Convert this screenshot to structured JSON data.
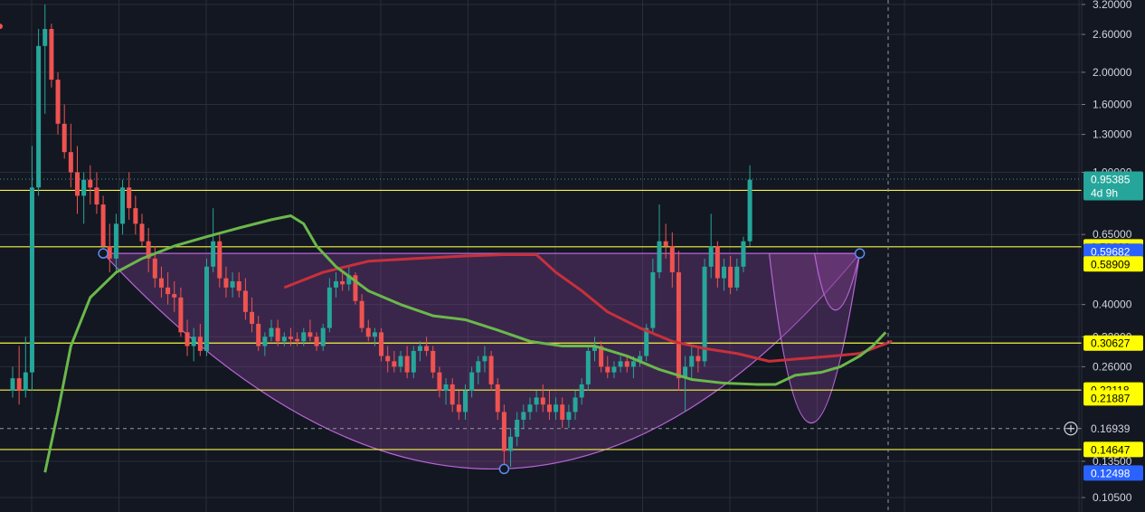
{
  "chart_data": {
    "type": "candlestick",
    "y_scale": "log",
    "ylim": [
      0.095,
      3.3
    ],
    "y_ticks": [
      "3.20000",
      "2.60000",
      "2.00000",
      "1.60000",
      "1.30000",
      "1.00000",
      "0.65000",
      "0.40000",
      "0.32000",
      "0.26000",
      "0.13500",
      "0.10500"
    ],
    "colors": {
      "background": "#131722",
      "grid": "#2a2e39",
      "up": "#26a69a",
      "down": "#ef5350",
      "ma_green": "#6bb84a",
      "ma_red": "#c8303b",
      "pattern_fill": "#7b3f8c",
      "pattern_line": "#b865d6",
      "level_line": "#f5f542"
    },
    "levels": [
      {
        "value": 0.88225,
        "label": "0.88225",
        "bg": "#ffff00",
        "fg": "#000000"
      },
      {
        "value": 0.59682,
        "label": "0.59682",
        "bg": "#ffff00",
        "fg": "#000000"
      },
      {
        "value": 0.30627,
        "label": "0.30627",
        "bg": "#ffff00",
        "fg": "#000000"
      },
      {
        "value": 0.22118,
        "label": "0.22118",
        "bg": "#ffff00",
        "fg": "#000000"
      },
      {
        "value": 0.14647,
        "label": "0.14647",
        "bg": "#ffff00",
        "fg": "#000000"
      }
    ],
    "extra_labels": [
      {
        "value": 0.95385,
        "label": "0.95385",
        "sub": "4d 9h",
        "bg": "#26a69a",
        "fg": "#ffffff"
      },
      {
        "value": 0.5785,
        "label": "0.59682",
        "bg": "#2962ff",
        "fg": "#ffffff"
      },
      {
        "value": 0.53,
        "label": "0.58909",
        "bg": "#ffff00",
        "fg": "#000000"
      },
      {
        "value": 0.2095,
        "label": "0.21887",
        "bg": "#ffff00",
        "fg": "#000000"
      },
      {
        "value": 0.16939,
        "label": "0.16939",
        "bg": "#131722",
        "fg": "#d1d4dc"
      },
      {
        "value": 0.1245,
        "label": "0.12498",
        "bg": "#2962ff",
        "fg": "#ffffff"
      }
    ],
    "crosshair": {
      "price": 0.16939,
      "x_index": 113
    },
    "cup": {
      "left": [
        0.57,
        14
      ],
      "bottom": [
        0.128,
        76
      ],
      "right": [
        0.57,
        131
      ]
    },
    "handle": {
      "left": [
        0.57,
        117
      ],
      "bottom": [
        0.176,
        123
      ],
      "right": [
        0.57,
        131
      ]
    },
    "handle2": {
      "left": [
        0.57,
        124
      ],
      "bottom": [
        0.385,
        127
      ],
      "right": [
        0.57,
        131
      ]
    },
    "ma_green": [
      [
        5,
        0.125
      ],
      [
        7,
        0.19
      ],
      [
        9,
        0.3
      ],
      [
        12,
        0.42
      ],
      [
        16,
        0.5
      ],
      [
        20,
        0.55
      ],
      [
        25,
        0.6
      ],
      [
        30,
        0.64
      ],
      [
        35,
        0.68
      ],
      [
        40,
        0.72
      ],
      [
        43,
        0.74
      ],
      [
        45,
        0.7
      ],
      [
        47,
        0.6
      ],
      [
        50,
        0.52
      ],
      [
        55,
        0.44
      ],
      [
        60,
        0.4
      ],
      [
        65,
        0.37
      ],
      [
        70,
        0.36
      ],
      [
        75,
        0.335
      ],
      [
        80,
        0.31
      ],
      [
        85,
        0.3
      ],
      [
        90,
        0.3
      ],
      [
        95,
        0.28
      ],
      [
        100,
        0.255
      ],
      [
        105,
        0.238
      ],
      [
        110,
        0.232
      ],
      [
        115,
        0.23
      ],
      [
        118,
        0.23
      ],
      [
        121,
        0.245
      ],
      [
        125,
        0.25
      ],
      [
        128,
        0.26
      ],
      [
        131,
        0.28
      ],
      [
        133,
        0.3
      ],
      [
        135,
        0.33
      ]
    ],
    "ma_red": [
      [
        42,
        0.45
      ],
      [
        48,
        0.5
      ],
      [
        55,
        0.54
      ],
      [
        62,
        0.55
      ],
      [
        70,
        0.56
      ],
      [
        76,
        0.565
      ],
      [
        81,
        0.565
      ],
      [
        84,
        0.5
      ],
      [
        88,
        0.44
      ],
      [
        92,
        0.38
      ],
      [
        97,
        0.34
      ],
      [
        102,
        0.31
      ],
      [
        107,
        0.295
      ],
      [
        112,
        0.285
      ],
      [
        117,
        0.27
      ],
      [
        122,
        0.275
      ],
      [
        127,
        0.28
      ],
      [
        131,
        0.285
      ],
      [
        134,
        0.3
      ],
      [
        136,
        0.31
      ]
    ],
    "candles": [
      [
        0.22,
        0.26,
        0.21,
        0.24
      ],
      [
        0.24,
        0.3,
        0.2,
        0.22
      ],
      [
        0.22,
        0.32,
        0.21,
        0.25
      ],
      [
        0.25,
        1.2,
        0.22,
        0.9
      ],
      [
        0.9,
        2.7,
        0.85,
        2.4
      ],
      [
        2.4,
        3.2,
        1.5,
        2.7
      ],
      [
        2.7,
        2.8,
        1.8,
        1.9
      ],
      [
        1.9,
        2.0,
        1.3,
        1.4
      ],
      [
        1.4,
        1.6,
        1.1,
        1.15
      ],
      [
        1.15,
        1.4,
        0.9,
        1.0
      ],
      [
        1.0,
        1.2,
        0.75,
        0.85
      ],
      [
        0.85,
        1.0,
        0.7,
        0.95
      ],
      [
        0.95,
        1.05,
        0.8,
        0.9
      ],
      [
        0.9,
        1.0,
        0.75,
        0.8
      ],
      [
        0.8,
        0.85,
        0.55,
        0.6
      ],
      [
        0.6,
        0.7,
        0.5,
        0.55
      ],
      [
        0.55,
        0.75,
        0.5,
        0.7
      ],
      [
        0.7,
        0.95,
        0.65,
        0.9
      ],
      [
        0.9,
        1.0,
        0.72,
        0.78
      ],
      [
        0.78,
        0.85,
        0.65,
        0.7
      ],
      [
        0.7,
        0.75,
        0.6,
        0.62
      ],
      [
        0.62,
        0.68,
        0.5,
        0.55
      ],
      [
        0.55,
        0.6,
        0.45,
        0.48
      ],
      [
        0.48,
        0.52,
        0.42,
        0.45
      ],
      [
        0.45,
        0.5,
        0.4,
        0.43
      ],
      [
        0.43,
        0.47,
        0.38,
        0.42
      ],
      [
        0.42,
        0.45,
        0.32,
        0.33
      ],
      [
        0.33,
        0.36,
        0.28,
        0.3
      ],
      [
        0.3,
        0.34,
        0.27,
        0.32
      ],
      [
        0.32,
        0.35,
        0.28,
        0.29
      ],
      [
        0.29,
        0.55,
        0.28,
        0.52
      ],
      [
        0.52,
        0.78,
        0.5,
        0.62
      ],
      [
        0.62,
        0.65,
        0.45,
        0.48
      ],
      [
        0.48,
        0.52,
        0.42,
        0.45
      ],
      [
        0.45,
        0.5,
        0.42,
        0.47
      ],
      [
        0.47,
        0.5,
        0.42,
        0.44
      ],
      [
        0.44,
        0.48,
        0.36,
        0.38
      ],
      [
        0.38,
        0.42,
        0.33,
        0.35
      ],
      [
        0.35,
        0.37,
        0.29,
        0.3
      ],
      [
        0.3,
        0.33,
        0.28,
        0.32
      ],
      [
        0.32,
        0.36,
        0.31,
        0.34
      ],
      [
        0.34,
        0.36,
        0.3,
        0.31
      ],
      [
        0.31,
        0.33,
        0.3,
        0.32
      ],
      [
        0.32,
        0.34,
        0.3,
        0.315
      ],
      [
        0.315,
        0.33,
        0.3,
        0.31
      ],
      [
        0.31,
        0.34,
        0.3,
        0.33
      ],
      [
        0.33,
        0.36,
        0.31,
        0.32
      ],
      [
        0.32,
        0.33,
        0.29,
        0.3
      ],
      [
        0.3,
        0.35,
        0.29,
        0.34
      ],
      [
        0.34,
        0.48,
        0.33,
        0.45
      ],
      [
        0.45,
        0.5,
        0.42,
        0.47
      ],
      [
        0.47,
        0.5,
        0.44,
        0.46
      ],
      [
        0.46,
        0.52,
        0.44,
        0.49
      ],
      [
        0.49,
        0.5,
        0.4,
        0.41
      ],
      [
        0.41,
        0.43,
        0.33,
        0.34
      ],
      [
        0.34,
        0.36,
        0.31,
        0.32
      ],
      [
        0.32,
        0.34,
        0.3,
        0.33
      ],
      [
        0.33,
        0.34,
        0.27,
        0.28
      ],
      [
        0.28,
        0.3,
        0.25,
        0.27
      ],
      [
        0.27,
        0.29,
        0.25,
        0.26
      ],
      [
        0.26,
        0.29,
        0.25,
        0.28
      ],
      [
        0.28,
        0.3,
        0.24,
        0.25
      ],
      [
        0.25,
        0.3,
        0.24,
        0.29
      ],
      [
        0.29,
        0.31,
        0.27,
        0.3
      ],
      [
        0.3,
        0.32,
        0.28,
        0.29
      ],
      [
        0.29,
        0.3,
        0.24,
        0.25
      ],
      [
        0.25,
        0.26,
        0.21,
        0.22
      ],
      [
        0.22,
        0.24,
        0.2,
        0.23
      ],
      [
        0.23,
        0.24,
        0.19,
        0.2
      ],
      [
        0.2,
        0.22,
        0.18,
        0.19
      ],
      [
        0.19,
        0.23,
        0.18,
        0.22
      ],
      [
        0.22,
        0.26,
        0.21,
        0.25
      ],
      [
        0.25,
        0.28,
        0.23,
        0.27
      ],
      [
        0.27,
        0.3,
        0.25,
        0.28
      ],
      [
        0.28,
        0.29,
        0.22,
        0.23
      ],
      [
        0.23,
        0.24,
        0.18,
        0.19
      ],
      [
        0.19,
        0.2,
        0.13,
        0.145
      ],
      [
        0.145,
        0.17,
        0.13,
        0.16
      ],
      [
        0.16,
        0.19,
        0.15,
        0.18
      ],
      [
        0.18,
        0.2,
        0.17,
        0.19
      ],
      [
        0.19,
        0.21,
        0.18,
        0.2
      ],
      [
        0.2,
        0.22,
        0.19,
        0.21
      ],
      [
        0.21,
        0.23,
        0.19,
        0.2
      ],
      [
        0.2,
        0.22,
        0.18,
        0.19
      ],
      [
        0.19,
        0.21,
        0.18,
        0.2
      ],
      [
        0.2,
        0.21,
        0.17,
        0.18
      ],
      [
        0.18,
        0.2,
        0.17,
        0.19
      ],
      [
        0.19,
        0.22,
        0.18,
        0.21
      ],
      [
        0.21,
        0.24,
        0.2,
        0.23
      ],
      [
        0.23,
        0.3,
        0.22,
        0.29
      ],
      [
        0.29,
        0.32,
        0.27,
        0.3
      ],
      [
        0.3,
        0.31,
        0.25,
        0.26
      ],
      [
        0.26,
        0.28,
        0.24,
        0.25
      ],
      [
        0.25,
        0.27,
        0.24,
        0.26
      ],
      [
        0.26,
        0.28,
        0.25,
        0.27
      ],
      [
        0.27,
        0.28,
        0.25,
        0.26
      ],
      [
        0.26,
        0.28,
        0.24,
        0.27
      ],
      [
        0.27,
        0.29,
        0.26,
        0.28
      ],
      [
        0.28,
        0.35,
        0.27,
        0.34
      ],
      [
        0.34,
        0.55,
        0.33,
        0.5
      ],
      [
        0.5,
        0.8,
        0.48,
        0.62
      ],
      [
        0.62,
        0.7,
        0.55,
        0.6
      ],
      [
        0.6,
        0.66,
        0.45,
        0.5
      ],
      [
        0.5,
        0.58,
        0.22,
        0.24
      ],
      [
        0.24,
        0.28,
        0.19,
        0.26
      ],
      [
        0.26,
        0.3,
        0.24,
        0.28
      ],
      [
        0.28,
        0.3,
        0.25,
        0.27
      ],
      [
        0.27,
        0.55,
        0.26,
        0.52
      ],
      [
        0.52,
        0.75,
        0.48,
        0.6
      ],
      [
        0.6,
        0.62,
        0.45,
        0.48
      ],
      [
        0.48,
        0.55,
        0.44,
        0.52
      ],
      [
        0.52,
        0.56,
        0.43,
        0.45
      ],
      [
        0.45,
        0.55,
        0.44,
        0.52
      ],
      [
        0.52,
        0.64,
        0.5,
        0.62
      ],
      [
        0.62,
        1.05,
        0.6,
        0.95
      ]
    ]
  }
}
